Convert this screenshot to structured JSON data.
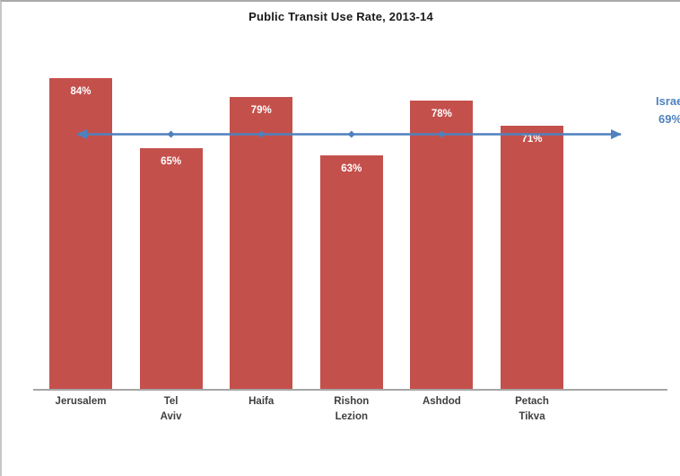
{
  "chart_data": {
    "type": "bar",
    "title": "Public Transit Use Rate, 2013-14",
    "categories": [
      "Jerusalem",
      "Tel Aviv",
      "Haifa",
      "Rishon Lezion",
      "Ashdod",
      "Petach Tikva"
    ],
    "values": [
      84,
      65,
      79,
      63,
      78,
      71
    ],
    "bar_labels": [
      "84%",
      "65%",
      "79%",
      "63%",
      "78%",
      "71%"
    ],
    "bar_color": "#c4504c",
    "reference_line": {
      "label": "Israel",
      "value": 69,
      "value_label": "69%",
      "color": "#4f81bd"
    },
    "xlabel": "",
    "ylabel": "",
    "ylim": [
      0,
      100
    ],
    "grid": false,
    "legend": "none",
    "axis_color": "#a6a6a6"
  }
}
